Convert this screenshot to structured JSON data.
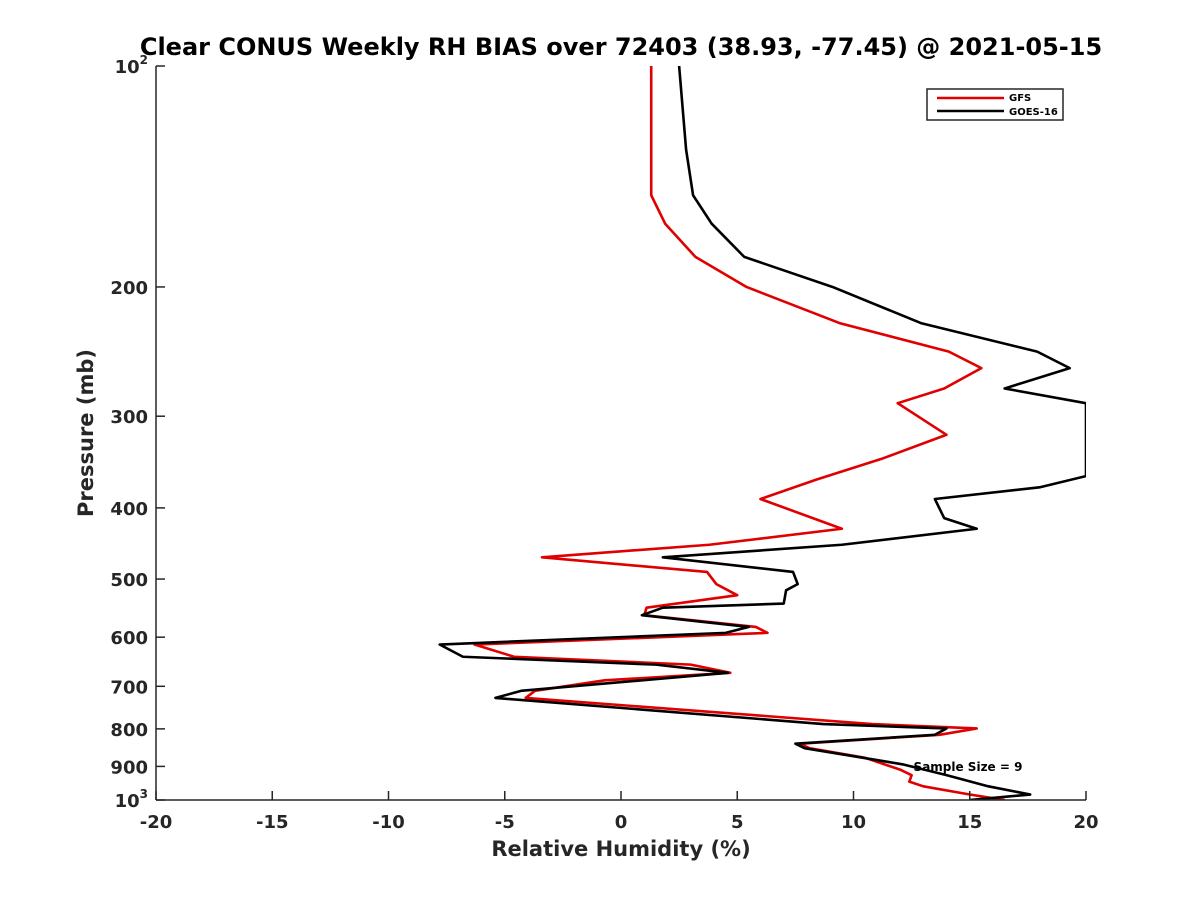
{
  "chart_data": {
    "type": "line",
    "title": "Clear CONUS Weekly RH BIAS over 72403 (38.93, -77.45) @ 2021-05-15",
    "xlabel": "Relative Humidity (%)",
    "ylabel": "Pressure (mb)",
    "xlim": [
      -20,
      20
    ],
    "ylim": [
      100,
      1000
    ],
    "y_scale": "log",
    "y_reversed": true,
    "x_ticks": [
      -20,
      -15,
      -10,
      -5,
      0,
      5,
      10,
      15,
      20
    ],
    "x_tick_labels": [
      "-20",
      "-15",
      "-10",
      "-5",
      "0",
      "5",
      "10",
      "15",
      "20"
    ],
    "y_ticks": [
      {
        "value": 100,
        "base": "10",
        "exp": "2"
      },
      {
        "value": 200,
        "label": "200"
      },
      {
        "value": 300,
        "label": "300"
      },
      {
        "value": 400,
        "label": "400"
      },
      {
        "value": 500,
        "label": "500"
      },
      {
        "value": 600,
        "label": "600"
      },
      {
        "value": 700,
        "label": "700"
      },
      {
        "value": 800,
        "label": "800"
      },
      {
        "value": 900,
        "label": "900"
      },
      {
        "value": 1000,
        "base": "10",
        "exp": "3"
      }
    ],
    "grid": false,
    "legend_position": "top-right",
    "annotation": "Sample Size = 9",
    "series": [
      {
        "name": "GFS",
        "color": "#e00000",
        "points": [
          [
            1.3,
            100
          ],
          [
            1.3,
            130
          ],
          [
            1.3,
            150
          ],
          [
            1.9,
            164
          ],
          [
            3.2,
            182
          ],
          [
            5.4,
            200
          ],
          [
            9.4,
            224
          ],
          [
            14.1,
            245
          ],
          [
            15.5,
            258
          ],
          [
            13.9,
            275
          ],
          [
            11.9,
            288
          ],
          [
            14.0,
            318
          ],
          [
            11.2,
            343
          ],
          [
            8.4,
            366
          ],
          [
            6.0,
            389
          ],
          [
            9.5,
            427
          ],
          [
            3.8,
            449
          ],
          [
            -3.4,
            467
          ],
          [
            3.7,
            489
          ],
          [
            4.1,
            508
          ],
          [
            5.0,
            526
          ],
          [
            1.1,
            547
          ],
          [
            1.0,
            560
          ],
          [
            5.8,
            581
          ],
          [
            6.3,
            592
          ],
          [
            -6.3,
            614
          ],
          [
            -4.6,
            638
          ],
          [
            3.0,
            654
          ],
          [
            4.7,
            671
          ],
          [
            -0.7,
            687
          ],
          [
            -3.7,
            710
          ],
          [
            -4.1,
            726
          ],
          [
            10.8,
            788
          ],
          [
            15.3,
            799
          ],
          [
            13.7,
            815
          ],
          [
            7.7,
            838
          ],
          [
            8.1,
            850
          ],
          [
            10.5,
            876
          ],
          [
            12.0,
            909
          ],
          [
            12.5,
            925
          ],
          [
            12.4,
            944
          ],
          [
            13.0,
            958
          ],
          [
            15.0,
            983
          ],
          [
            16.5,
            1000
          ]
        ]
      },
      {
        "name": "GOES-16",
        "color": "#000000",
        "points": [
          [
            2.5,
            100
          ],
          [
            2.8,
            130
          ],
          [
            3.1,
            150
          ],
          [
            3.9,
            164
          ],
          [
            5.3,
            182
          ],
          [
            9.1,
            200
          ],
          [
            12.9,
            224
          ],
          [
            17.9,
            245
          ],
          [
            19.3,
            258
          ],
          [
            16.5,
            275
          ],
          [
            20.0,
            288
          ],
          [
            20.0,
            362
          ],
          [
            18.0,
            375
          ],
          [
            13.5,
            389
          ],
          [
            13.9,
            413
          ],
          [
            15.3,
            427
          ],
          [
            9.5,
            449
          ],
          [
            1.8,
            467
          ],
          [
            7.4,
            489
          ],
          [
            7.6,
            508
          ],
          [
            7.1,
            518
          ],
          [
            7.0,
            540
          ],
          [
            1.8,
            547
          ],
          [
            0.9,
            560
          ],
          [
            5.5,
            581
          ],
          [
            4.5,
            592
          ],
          [
            -7.8,
            614
          ],
          [
            -6.8,
            638
          ],
          [
            1.5,
            654
          ],
          [
            4.6,
            671
          ],
          [
            0.9,
            687
          ],
          [
            -4.3,
            710
          ],
          [
            -5.4,
            726
          ],
          [
            8.7,
            788
          ],
          [
            14.0,
            799
          ],
          [
            13.5,
            815
          ],
          [
            7.5,
            838
          ],
          [
            7.9,
            850
          ],
          [
            12.1,
            894
          ],
          [
            14.0,
            925
          ],
          [
            15.8,
            958
          ],
          [
            17.6,
            983
          ],
          [
            15.0,
            1000
          ]
        ]
      }
    ]
  }
}
